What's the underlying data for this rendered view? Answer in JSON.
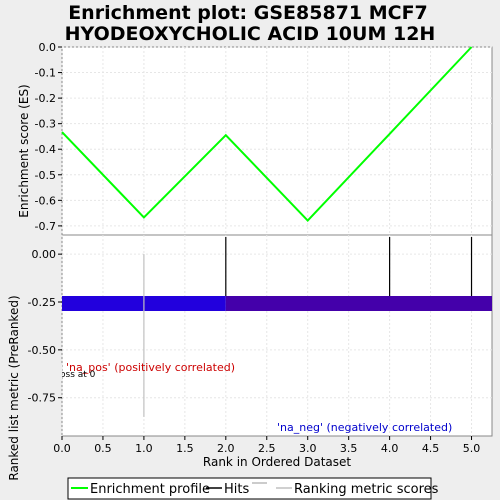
{
  "chart_data": [
    {
      "type": "line",
      "title_line1": "Enrichment plot: GSE85871 MCF7",
      "title_line2": "HYODEOXYCHOLIC ACID 10UM 12H",
      "ylabel": "Enrichment score (ES)",
      "ylim": [
        -0.72,
        0.0
      ],
      "xlim": [
        0,
        5.25
      ],
      "grid": true,
      "yticks": [
        0.0,
        -0.1,
        -0.2,
        -0.3,
        -0.4,
        -0.5,
        -0.6,
        -0.7
      ],
      "ytick_labels": [
        "0.0",
        "-0.1",
        "-0.2",
        "-0.3",
        "-0.4",
        "-0.5",
        "-0.6",
        "-0.7"
      ],
      "series": [
        {
          "name": "Enrichment profile",
          "color": "#00ff00",
          "x": [
            0,
            1,
            2,
            3,
            4,
            5
          ],
          "y": [
            -0.333,
            -0.667,
            -0.345,
            -0.679,
            -0.34,
            0.0
          ]
        }
      ]
    },
    {
      "type": "hits",
      "hits_x": [
        2,
        4,
        5
      ],
      "hits_color": "#000000",
      "color_bar": [
        {
          "from": 0,
          "to": 2,
          "color": "#2200dd"
        },
        {
          "from": 2,
          "to": 5.25,
          "color": "#4400aa"
        }
      ]
    },
    {
      "type": "bar",
      "ylabel": "Ranked list metric (PreRanked)",
      "xlabel": "Rank in Ordered Dataset",
      "xlim": [
        0,
        5.25
      ],
      "ylim": [
        -0.95,
        0.1
      ],
      "grid": true,
      "xticks": [
        0.0,
        0.5,
        1.0,
        1.5,
        2.0,
        2.5,
        3.0,
        3.5,
        4.0,
        4.5,
        5.0
      ],
      "xtick_labels": [
        "0.0",
        "0.5",
        "1.0",
        "1.5",
        "2.0",
        "2.5",
        "3.0",
        "3.5",
        "4.0",
        "4.5",
        "5.0"
      ],
      "yticks": [
        0.0,
        -0.25,
        -0.5,
        -0.75
      ],
      "ytick_labels": [
        "0.00",
        "-0.25",
        "-0.50",
        "-0.75"
      ],
      "metric_x": [
        0,
        1,
        2,
        3,
        4,
        5
      ],
      "metric_values": [
        0.0,
        -0.85,
        0.0,
        0.0,
        0.0,
        0.0
      ],
      "annotations": {
        "pos": {
          "text": "'na_pos' (positively correlated)",
          "color": "#cc0000"
        },
        "neg": {
          "text": "'na_neg' (negatively correlated)",
          "color": "#0000cc"
        },
        "zero": {
          "text": "Zero cross at 0"
        }
      }
    }
  ],
  "legend": {
    "placement": "bottom",
    "items": [
      {
        "label": "Enrichment profile",
        "color": "#00ff00"
      },
      {
        "label": "Hits",
        "color": "#000000"
      },
      {
        "label": "Ranking metric scores",
        "color": "#c0c0c0"
      }
    ]
  }
}
